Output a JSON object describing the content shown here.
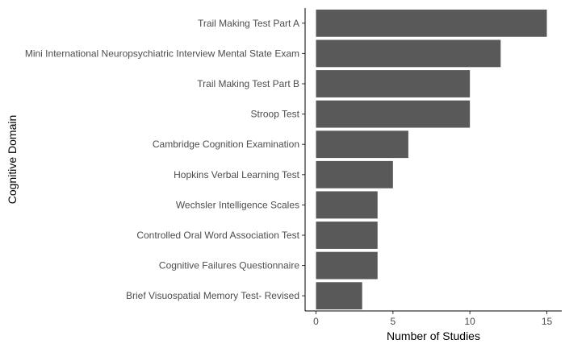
{
  "chart_data": {
    "type": "bar",
    "orientation": "horizontal",
    "categories": [
      "Trail Making Test Part A",
      "Mini International Neuropsychiatric Interview Mental State Exam",
      "Trail Making Test Part  B",
      "Stroop Test",
      "Cambridge Cognition Examination",
      "Hopkins Verbal Learning Test",
      "Wechsler Intelligence Scales",
      "Controlled Oral Word Association Test",
      "Cognitive Failures Questionnaire",
      "Brief Visuospatial Memory Test- Revised"
    ],
    "values": [
      15,
      12,
      10,
      10,
      6,
      5,
      4,
      4,
      4,
      3
    ],
    "title": "",
    "xlabel": "Number of Studies",
    "ylabel": "Cognitive Domain",
    "xlim": [
      0,
      15
    ],
    "xticks": [
      "0",
      "5",
      "10",
      "15"
    ],
    "grid": false,
    "colors": {
      "bar": "#595959",
      "axis": "#000000",
      "tick_text": "#4d4d4d"
    }
  }
}
